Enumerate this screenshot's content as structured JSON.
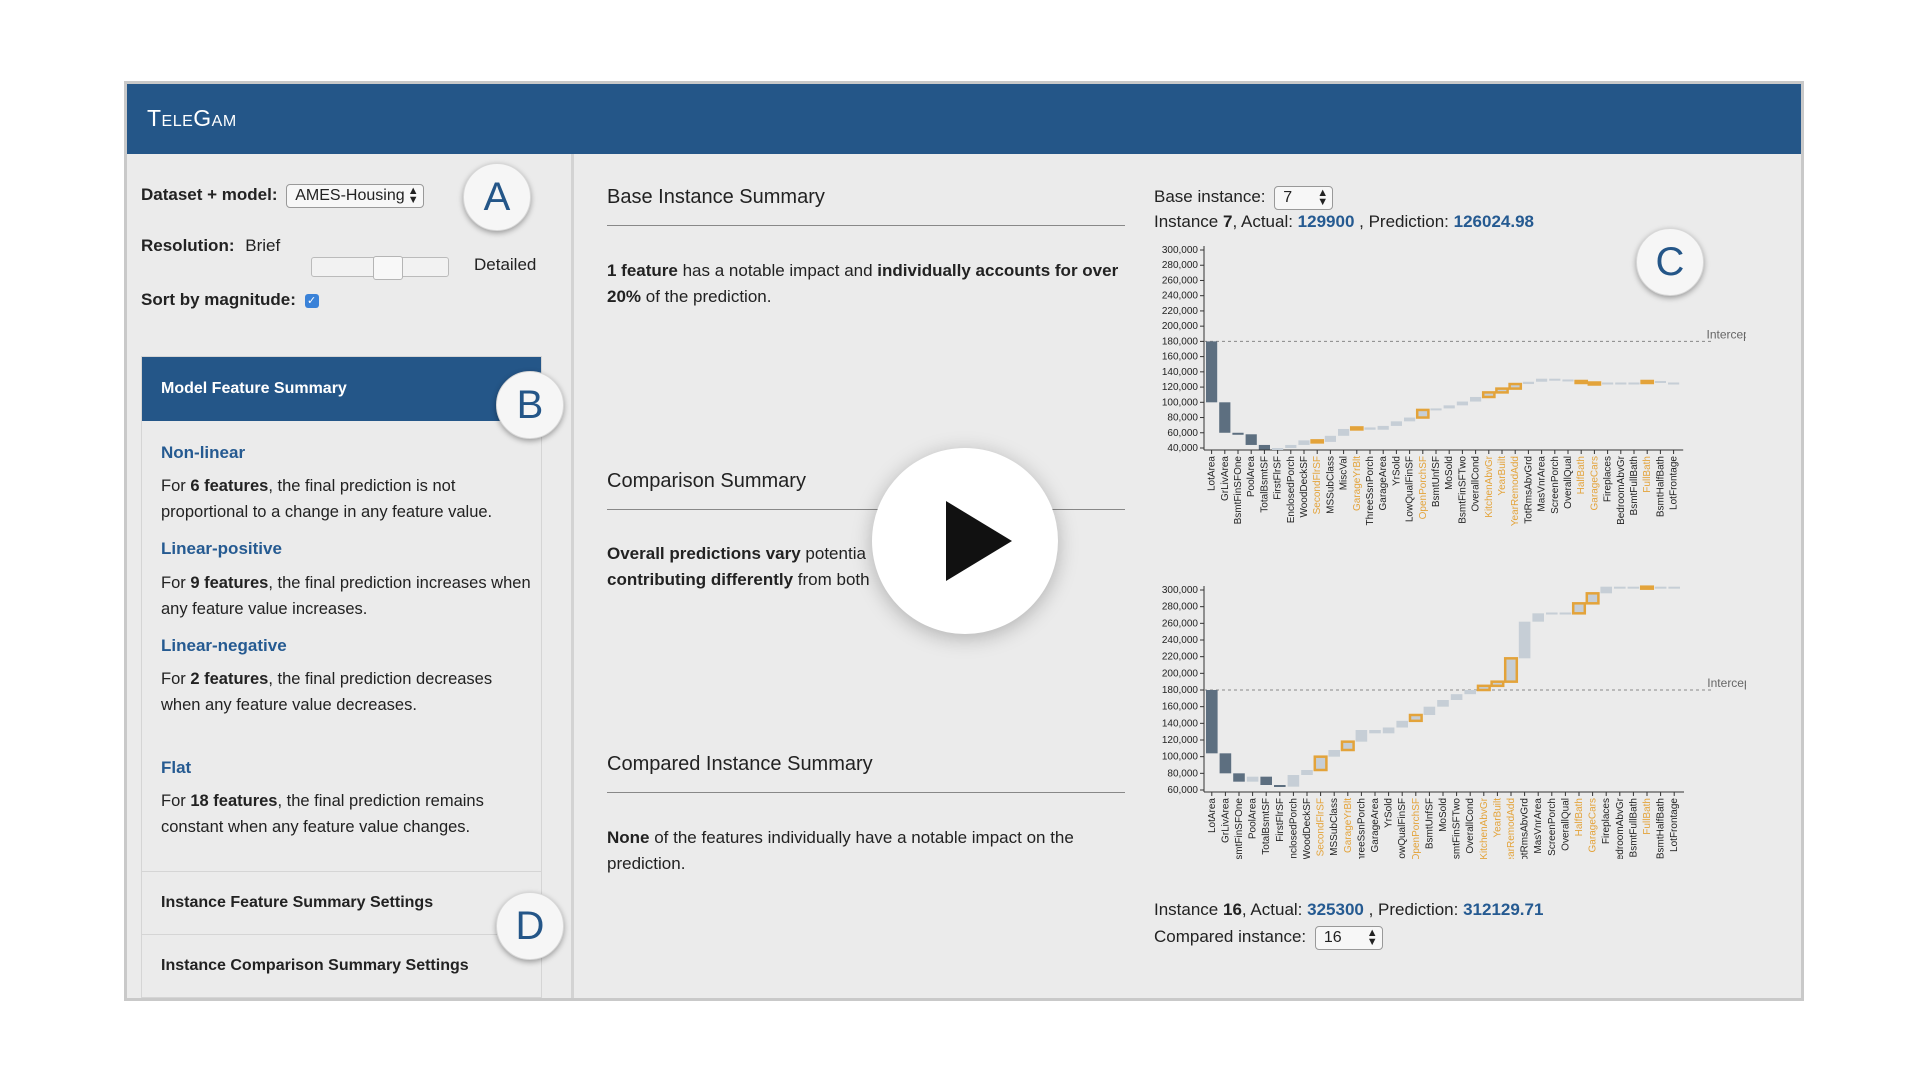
{
  "app": {
    "title": "TeleGam"
  },
  "sidebar": {
    "dataset_label": "Dataset + model:",
    "dataset_value": "AMES-Housing",
    "resolution_label": "Resolution:",
    "resolution_min": "Brief",
    "resolution_max": "Detailed",
    "sort_label": "Sort by magnitude:",
    "sort_checked": true,
    "panel_header": "Model Feature Summary",
    "categories": [
      {
        "title": "Non-linear",
        "pre": "For ",
        "count": "6 features",
        "post": ", the final prediction is not proportional to a change in any feature value."
      },
      {
        "title": "Linear-positive",
        "pre": "For ",
        "count": "9 features",
        "post": ", the final prediction increases when any feature value increases."
      },
      {
        "title": "Linear-negative",
        "pre": "For ",
        "count": "2 features",
        "post": ", the final prediction decreases when any feature value decreases."
      },
      {
        "title": "Flat",
        "pre": "For ",
        "count": "18 features",
        "post": ", the final prediction remains constant when any feature value changes."
      }
    ],
    "settings": [
      "Instance Feature Summary Settings",
      "Instance Comparison Summary Settings"
    ]
  },
  "annotations": {
    "a": "A",
    "b": "B",
    "c": "C",
    "d": "D"
  },
  "main": {
    "base_summary": {
      "title": "Base Instance Summary",
      "bold1": "1 feature",
      "text1": " has a notable impact and ",
      "bold2": "individually accounts for over 20%",
      "text2": " of the prediction."
    },
    "comparison_summary": {
      "title": "Comparison Summary",
      "bold1": "Overall predictions vary",
      "text1": " potentia",
      "bold2": "contributing differently",
      "text2": " from both"
    },
    "compared_summary": {
      "title": "Compared Instance Summary",
      "bold1": "None",
      "text1": " of the features individually have a notable impact on the prediction."
    },
    "base_instance": {
      "label": "Base instance:",
      "value": "7",
      "instance_prefix": "Instance ",
      "instance_num": "7",
      "actual_label": ", Actual: ",
      "actual": "129900",
      "prediction_label": " , Prediction: ",
      "prediction": "126024.98"
    },
    "compared_instance": {
      "label": "Compared instance:",
      "value": "16",
      "instance_prefix": "Instance ",
      "instance_num": "16",
      "actual_label": ", Actual: ",
      "actual": "325300",
      "prediction_label": " , Prediction: ",
      "prediction": "312129.71"
    }
  },
  "colors": {
    "header": "#245688",
    "accent_blue": "#255a91",
    "highlight": "#e3a33a",
    "bar_dark": "#5d6f80",
    "bar_light": "#c6ced6"
  },
  "chart_data": [
    {
      "type": "waterfall",
      "intercept_label": "Intercept",
      "intercept": 180000,
      "ylim": [
        40000,
        300000
      ],
      "yticks": [
        "300,000",
        "280,000",
        "260,000",
        "240,000",
        "220,000",
        "200,000",
        "180,000",
        "160,000",
        "140,000",
        "120,000",
        "100,000",
        "80,000",
        "60,000",
        "40,000"
      ],
      "categories": [
        "LotArea",
        "GrLivArea",
        "BsmtFinSFOne",
        "PoolArea",
        "TotalBsmtSF",
        "FirstFlrSF",
        "EnclosedPorch",
        "WoodDeckSF",
        "SecondFlrSF",
        "MSSubClass",
        "MiscVal",
        "GarageYrBlt",
        "ThreeSsnPorch",
        "GarageArea",
        "YrSold",
        "LowQualFinSF",
        "OpenPorchSF",
        "BsmtUnfSF",
        "MoSold",
        "BsmtFinSFTwo",
        "OverallCond",
        "KitchenAbvGr",
        "YearBuilt",
        "YearRemodAdd",
        "TotRmsAbvGrd",
        "MasVnrArea",
        "ScreenPorch",
        "OverallQual",
        "HalfBath",
        "GarageCars",
        "Fireplaces",
        "BedroomAbvGr",
        "BsmtFullBath",
        "FullBath",
        "BsmtHalfBath",
        "LotFrontage"
      ],
      "highlighted": [
        "SecondFlrSF",
        "GarageYrBlt",
        "OpenPorchSF",
        "KitchenAbvGr",
        "YearBuilt",
        "YearRemodAdd",
        "HalfBath",
        "GarageCars",
        "FullBath"
      ],
      "cumulative": [
        180000,
        100000,
        60000,
        58000,
        44000,
        38000,
        40000,
        44000,
        50000,
        48000,
        56000,
        65000,
        67000,
        64000,
        69000,
        75000,
        80000,
        90000,
        92000,
        96000,
        101000,
        107000,
        113000,
        118000,
        124000,
        127000,
        131000,
        130000,
        128000,
        126000,
        126000,
        126000,
        126000,
        126000,
        128000,
        126000,
        126000
      ]
    },
    {
      "type": "waterfall",
      "intercept_label": "Intercept",
      "intercept": 180000,
      "ylim": [
        60000,
        300000
      ],
      "yticks": [
        "300,000",
        "280,000",
        "260,000",
        "240,000",
        "220,000",
        "200,000",
        "180,000",
        "160,000",
        "140,000",
        "120,000",
        "100,000",
        "80,000",
        "60,000"
      ],
      "categories": [
        "LotArea",
        "GrLivArea",
        "BsmtFinSFOne",
        "PoolArea",
        "TotalBsmtSF",
        "FirstFlrSF",
        "EnclosedPorch",
        "WoodDeckSF",
        "SecondFlrSF",
        "MSSubClass",
        "GarageYrBlt",
        "ThreeSsnPorch",
        "GarageArea",
        "YrSold",
        "LowQualFinSF",
        "OpenPorchSF",
        "BsmtUnfSF",
        "MoSold",
        "BsmtFinSFTwo",
        "OverallCond",
        "KitchenAbvGr",
        "YearBuilt",
        "YearRemodAdd",
        "TotRmsAbvGrd",
        "MasVnrArea",
        "ScreenPorch",
        "OverallQual",
        "HalfBath",
        "GarageCars",
        "Fireplaces",
        "BedroomAbvGr",
        "BsmtFullBath",
        "FullBath",
        "BsmtHalfBath",
        "LotFrontage"
      ],
      "highlighted": [
        "SecondFlrSF",
        "GarageYrBlt",
        "OpenPorchSF",
        "KitchenAbvGr",
        "YearBuilt",
        "YearRemodAdd",
        "HalfBath",
        "GarageCars",
        "FullBath"
      ],
      "cumulative": [
        180000,
        104000,
        80000,
        70000,
        76000,
        66000,
        64000,
        78000,
        84000,
        100000,
        108000,
        118000,
        132000,
        128000,
        135000,
        143000,
        150000,
        160000,
        168000,
        175000,
        180000,
        185000,
        190000,
        218000,
        262000,
        272000,
        273000,
        272000,
        284000,
        296000,
        304000,
        304000,
        304000,
        304000,
        304000,
        304000
      ]
    }
  ]
}
